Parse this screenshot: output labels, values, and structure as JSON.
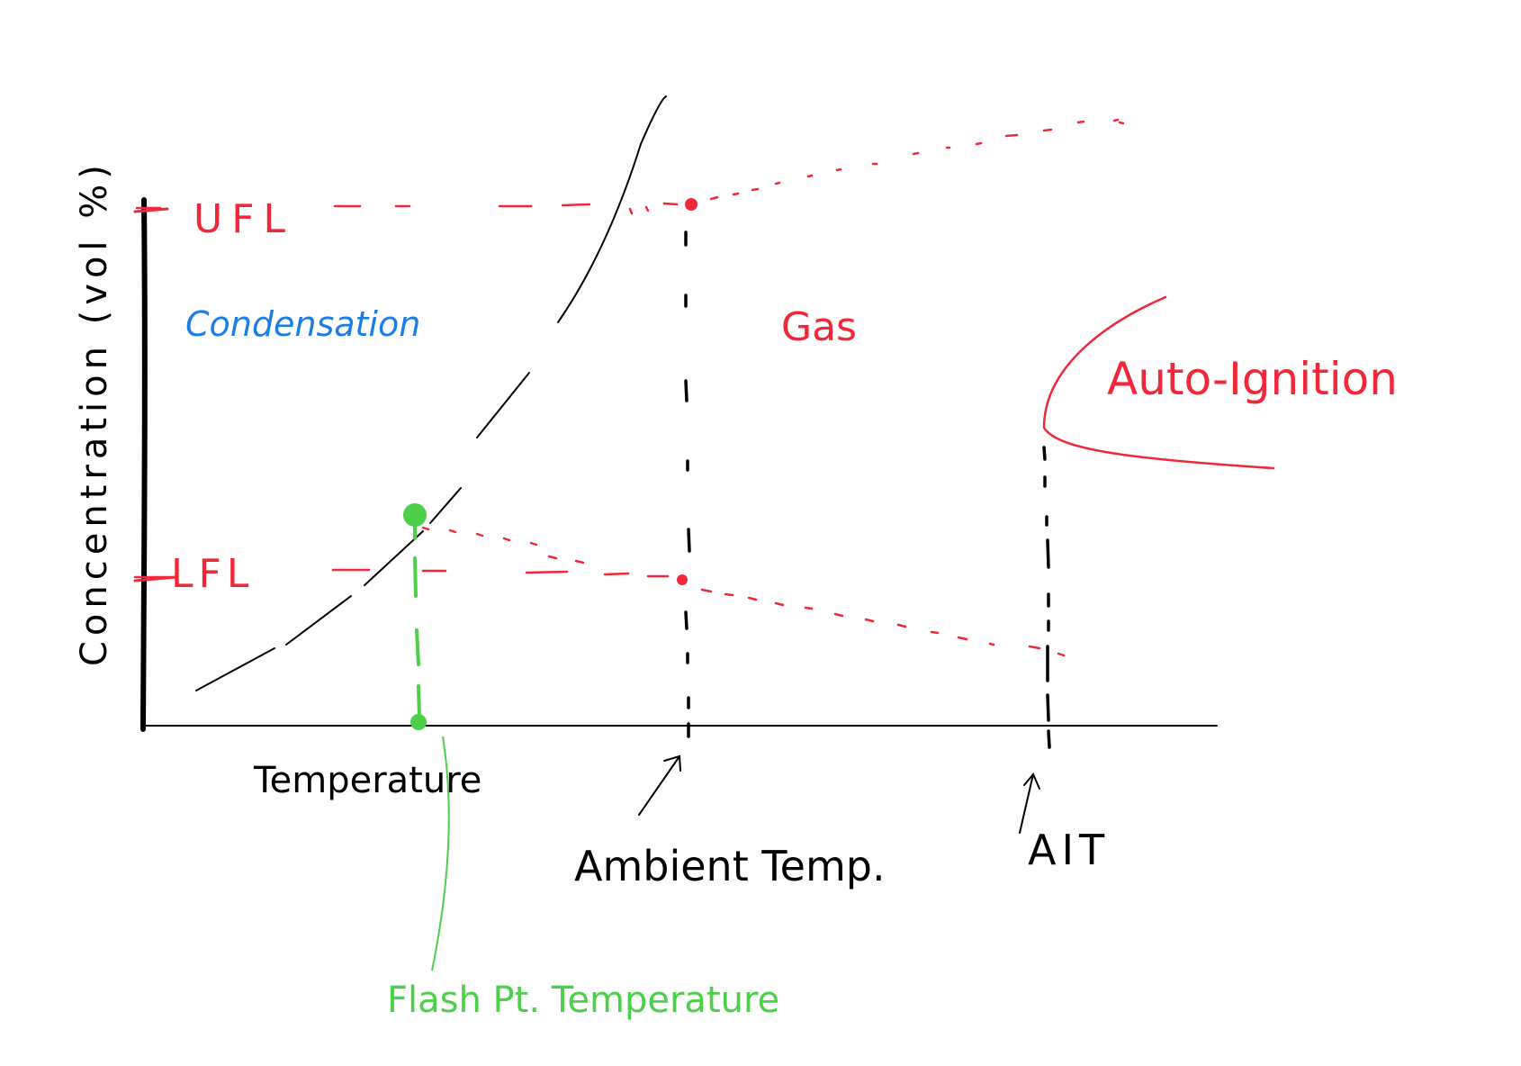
{
  "axes": {
    "y_label": "Concentration (vol %)",
    "x_label": "Temperature"
  },
  "levels": {
    "ufl": "UFL",
    "lfl": "LFL"
  },
  "regions": {
    "condensation": "Condensation",
    "gas": "Gas",
    "auto_ignition": "Auto-Ignition"
  },
  "markers": {
    "ambient": "Ambient Temp.",
    "ait": "AIT",
    "flash_point": "Flash Pt. Temperature"
  },
  "colors": {
    "ink": "#000000",
    "red": "#f0283a",
    "blue": "#1a7de8",
    "green": "#4cd04a"
  }
}
